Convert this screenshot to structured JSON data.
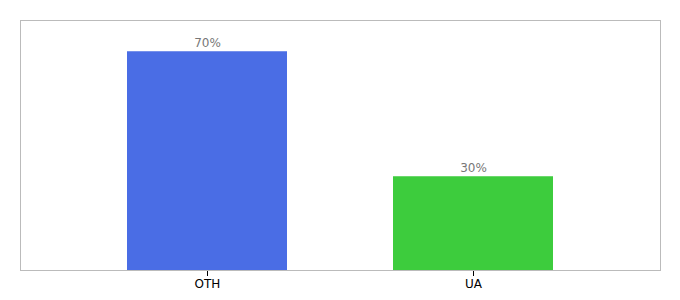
{
  "chart_data": {
    "type": "bar",
    "categories": [
      "OTH",
      "UA"
    ],
    "values": [
      70,
      30
    ],
    "value_labels": [
      "70%",
      "30%"
    ],
    "colors": [
      "#4a6de5",
      "#3dcc3d"
    ],
    "data_labels": true,
    "ylim": [
      0,
      80
    ],
    "tick_labels": "x",
    "grid": false
  }
}
